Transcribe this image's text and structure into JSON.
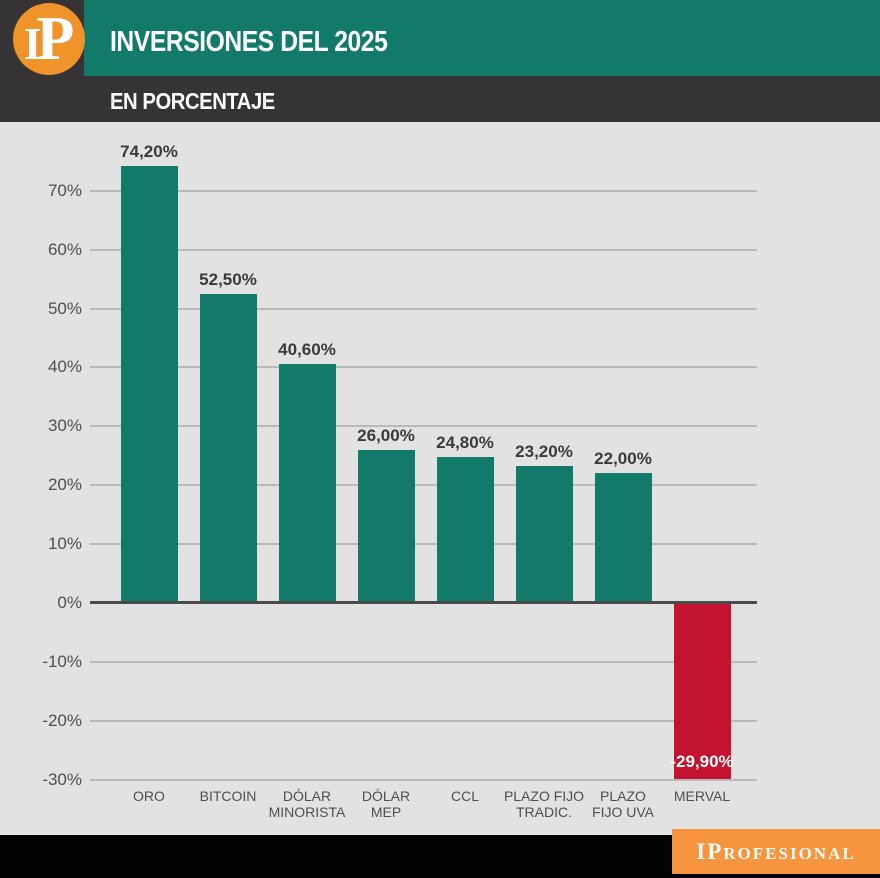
{
  "header": {
    "logo_i": "I",
    "logo_p": "P",
    "title": "INVERSIONES DEL 2025",
    "subtitle": "EN PORCENTAJE"
  },
  "footer": {
    "brand_prefix": "IP",
    "brand_rest": "ROFESIONAL"
  },
  "colors": {
    "teal": "#117a69",
    "red": "#c3132f",
    "dark": "#363336",
    "logo_orange": "#f09329",
    "footer_orange": "#f6953e",
    "background_gray": "#e2e2e2",
    "grid_gray": "#b9b9b9",
    "zero_line": "#4a4a4a",
    "white": "#ffffff"
  },
  "chart_data": {
    "type": "bar",
    "title": "INVERSIONES DEL 2025",
    "subtitle": "EN PORCENTAJE",
    "unit": "%",
    "categories": [
      "ORO",
      "BITCOIN",
      "DÓLAR MINORISTA",
      "DÓLAR MEP",
      "CCL",
      "PLAZO FIJO TRADIC.",
      "PLAZO FIJO UVA",
      "MERVAL"
    ],
    "category_lines": [
      [
        "ORO"
      ],
      [
        "BITCOIN"
      ],
      [
        "DÓLAR",
        "MINORISTA"
      ],
      [
        "DÓLAR",
        "MEP"
      ],
      [
        "CCL"
      ],
      [
        "PLAZO FIJO",
        "TRADIC."
      ],
      [
        "PLAZO",
        "FIJO UVA"
      ],
      [
        "MERVAL"
      ]
    ],
    "values": [
      74.2,
      52.5,
      40.6,
      26.0,
      24.8,
      23.2,
      22.0,
      -29.9
    ],
    "value_labels": [
      "74,20%",
      "52,50%",
      "40,60%",
      "26,00%",
      "24,80%",
      "23,20%",
      "22,00%",
      "-29,90%"
    ],
    "bar_color_keys": [
      "teal",
      "teal",
      "teal",
      "teal",
      "teal",
      "teal",
      "teal",
      "red"
    ],
    "y_ticks": [
      70,
      60,
      50,
      40,
      30,
      20,
      10,
      0,
      -10,
      -20,
      -30
    ],
    "y_tick_labels": [
      "70%",
      "60%",
      "50%",
      "40%",
      "30%",
      "20%",
      "10%",
      "0%",
      "-10%",
      "-20%",
      "-30%"
    ],
    "ylim": [
      -33,
      80
    ],
    "grid": true,
    "legend": false
  }
}
